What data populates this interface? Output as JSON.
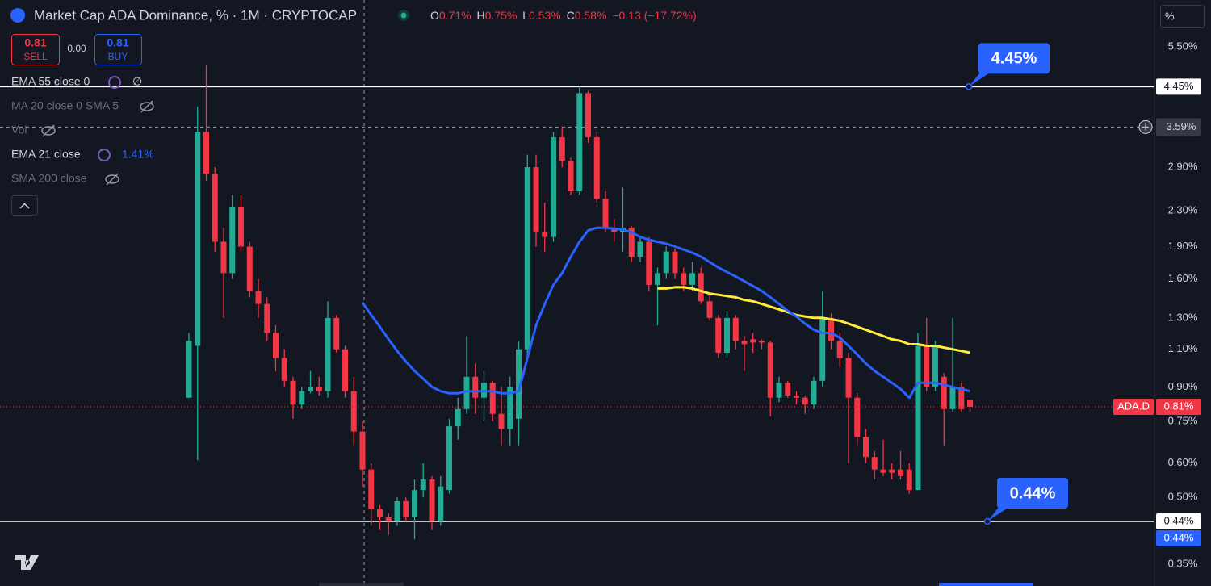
{
  "header": {
    "title": "Market Cap ADA Dominance, % · 1M · CRYPTOCAP",
    "ohlc": [
      {
        "key": "O",
        "text": "0.71%"
      },
      {
        "key": "H",
        "text": "0.75%"
      },
      {
        "key": "L",
        "text": "0.53%"
      },
      {
        "key": "C",
        "text": "0.58%"
      }
    ],
    "change": "−0.13 (−17.72%)"
  },
  "trade": {
    "sell_price": "0.81",
    "sell": "SELL",
    "spread": "0.00",
    "buy_price": "0.81",
    "buy": "BUY"
  },
  "hidden_indicators": [
    "MA 20 close 0 SMA 5",
    "Vol",
    "SMA 200 close"
  ],
  "scale_unit": "%",
  "chart_data": {
    "type": "candlestick",
    "log": true,
    "up_color": "#22ab94",
    "down_color": "#f23645",
    "open": [
      0.85,
      1.12,
      3.5,
      2.8,
      1.95,
      1.65,
      2.35,
      1.9,
      1.5,
      1.4,
      1.2,
      1.05,
      0.93,
      0.82,
      0.88,
      0.9,
      0.88,
      1.3,
      1.1,
      0.88,
      0.71,
      0.58,
      0.47,
      0.45,
      0.44,
      0.49,
      0.45,
      0.52,
      0.55,
      0.44,
      0.52,
      0.73,
      0.8,
      0.95,
      0.85,
      0.92,
      0.78,
      0.72,
      0.76,
      1.1,
      2.9,
      2.05,
      2.0,
      3.4,
      3.0,
      2.55,
      4.3,
      3.4,
      2.45,
      2.1,
      2.05,
      2.1,
      1.8,
      1.95,
      1.55,
      1.65,
      1.85,
      1.65,
      1.55,
      1.65,
      1.42,
      1.3,
      1.08,
      1.3,
      1.15,
      1.16,
      1.15,
      1.14,
      0.85,
      0.92,
      0.86,
      0.85,
      0.82,
      0.93,
      1.3,
      1.15,
      1.05,
      0.85,
      0.69,
      0.62,
      0.58,
      0.58,
      0.58,
      0.58,
      0.52,
      1.12,
      0.9,
      0.95,
      0.8,
      0.9,
      0.84
    ],
    "high": [
      1.2,
      4.0,
      5.0,
      2.9,
      2.1,
      2.5,
      2.5,
      1.95,
      1.6,
      1.45,
      1.25,
      1.1,
      0.95,
      0.9,
      0.98,
      0.95,
      1.42,
      1.32,
      1.12,
      0.95,
      0.75,
      0.6,
      0.48,
      0.46,
      0.5,
      0.5,
      0.55,
      0.6,
      0.56,
      0.56,
      0.76,
      0.85,
      1.18,
      1.02,
      0.98,
      0.93,
      0.9,
      0.95,
      1.15,
      3.1,
      3.1,
      2.4,
      3.5,
      3.6,
      3.05,
      4.45,
      4.35,
      3.5,
      2.55,
      2.2,
      2.6,
      2.12,
      2.0,
      2.0,
      1.7,
      1.9,
      1.88,
      1.7,
      1.75,
      1.7,
      1.48,
      1.32,
      1.35,
      1.32,
      1.18,
      1.2,
      1.16,
      1.15,
      0.95,
      0.93,
      0.88,
      0.86,
      0.95,
      1.5,
      1.33,
      1.2,
      1.08,
      0.87,
      0.72,
      0.64,
      0.68,
      0.6,
      0.64,
      0.6,
      1.2,
      1.3,
      1.15,
      0.97,
      1.3,
      0.92,
      0.84
    ],
    "low": [
      0.85,
      0.61,
      2.7,
      1.85,
      1.3,
      1.6,
      1.85,
      1.45,
      1.3,
      1.15,
      0.98,
      0.9,
      0.76,
      0.8,
      0.87,
      0.86,
      0.85,
      1.08,
      0.85,
      0.66,
      0.53,
      0.43,
      0.42,
      0.41,
      0.43,
      0.44,
      0.4,
      0.5,
      0.42,
      0.43,
      0.51,
      0.68,
      0.78,
      0.78,
      0.75,
      0.75,
      0.66,
      0.66,
      0.66,
      1.05,
      1.9,
      1.85,
      1.95,
      2.9,
      2.5,
      2.5,
      3.3,
      2.4,
      2.05,
      1.95,
      1.85,
      1.75,
      1.75,
      1.5,
      1.25,
      1.6,
      1.6,
      1.5,
      1.5,
      1.4,
      1.28,
      1.05,
      1.05,
      1.1,
      0.98,
      1.08,
      1.1,
      0.77,
      0.83,
      0.85,
      0.82,
      0.78,
      0.8,
      0.9,
      1.1,
      1.0,
      0.6,
      0.66,
      0.6,
      0.55,
      0.56,
      0.55,
      0.55,
      0.51,
      0.52,
      0.88,
      0.88,
      0.66,
      0.79,
      0.79,
      0.79
    ],
    "close": [
      1.15,
      3.5,
      2.8,
      1.95,
      1.65,
      2.35,
      1.9,
      1.5,
      1.4,
      1.2,
      1.05,
      0.93,
      0.82,
      0.88,
      0.9,
      0.88,
      1.3,
      1.1,
      0.88,
      0.71,
      0.58,
      0.47,
      0.45,
      0.44,
      0.49,
      0.45,
      0.52,
      0.55,
      0.44,
      0.53,
      0.73,
      0.8,
      0.95,
      0.85,
      0.92,
      0.78,
      0.72,
      0.9,
      1.1,
      2.9,
      2.05,
      2.0,
      3.4,
      3.0,
      2.55,
      4.3,
      3.4,
      2.45,
      2.1,
      2.05,
      2.1,
      1.8,
      1.95,
      1.55,
      1.65,
      1.85,
      1.65,
      1.55,
      1.65,
      1.42,
      1.3,
      1.08,
      1.3,
      1.15,
      1.13,
      1.14,
      1.14,
      0.85,
      0.92,
      0.86,
      0.85,
      0.82,
      0.93,
      1.3,
      1.15,
      1.05,
      0.85,
      0.69,
      0.62,
      0.58,
      0.57,
      0.57,
      0.56,
      0.52,
      1.12,
      0.9,
      1.12,
      0.8,
      0.9,
      0.8,
      0.81
    ],
    "series": [
      {
        "name": "EMA 55 close 0",
        "legend_value": "∅",
        "color": "#ffeb3b",
        "values": [
          null,
          null,
          null,
          null,
          null,
          null,
          null,
          null,
          null,
          null,
          null,
          null,
          null,
          null,
          null,
          null,
          null,
          null,
          null,
          null,
          null,
          null,
          null,
          null,
          null,
          null,
          null,
          null,
          null,
          null,
          null,
          null,
          null,
          null,
          null,
          null,
          null,
          null,
          null,
          null,
          null,
          null,
          null,
          null,
          null,
          null,
          null,
          null,
          null,
          null,
          null,
          null,
          null,
          null,
          1.52,
          1.52,
          1.53,
          1.53,
          1.52,
          1.5,
          1.48,
          1.47,
          1.46,
          1.45,
          1.43,
          1.42,
          1.4,
          1.38,
          1.36,
          1.34,
          1.32,
          1.31,
          1.3,
          1.3,
          1.29,
          1.28,
          1.26,
          1.24,
          1.22,
          1.2,
          1.18,
          1.16,
          1.15,
          1.13,
          1.13,
          1.12,
          1.12,
          1.11,
          1.1,
          1.09,
          1.08
        ]
      },
      {
        "name": "EMA 21 close",
        "legend_value": "1.41%",
        "color": "#2962ff",
        "values": [
          null,
          null,
          null,
          null,
          null,
          null,
          null,
          null,
          null,
          null,
          null,
          null,
          null,
          null,
          null,
          null,
          null,
          null,
          null,
          null,
          1.41,
          1.32,
          1.24,
          1.16,
          1.09,
          1.03,
          0.98,
          0.94,
          0.9,
          0.88,
          0.87,
          0.87,
          0.88,
          0.88,
          0.88,
          0.88,
          0.87,
          0.87,
          0.88,
          1.05,
          1.25,
          1.4,
          1.55,
          1.65,
          1.8,
          1.95,
          2.07,
          2.1,
          2.1,
          2.09,
          2.08,
          2.05,
          2.0,
          1.97,
          1.95,
          1.93,
          1.9,
          1.87,
          1.84,
          1.8,
          1.75,
          1.7,
          1.66,
          1.62,
          1.58,
          1.54,
          1.5,
          1.45,
          1.4,
          1.35,
          1.31,
          1.26,
          1.22,
          1.2,
          1.2,
          1.17,
          1.12,
          1.07,
          1.02,
          0.98,
          0.95,
          0.92,
          0.89,
          0.85,
          0.92,
          0.92,
          0.92,
          0.91,
          0.9,
          0.89,
          0.88
        ]
      }
    ],
    "ylim": [
      0.312,
      7.06
    ],
    "yticks": [
      {
        "value": 5.5,
        "label": "5.50%"
      },
      {
        "value": 2.9,
        "label": "2.90%"
      },
      {
        "value": 2.3,
        "label": "2.30%"
      },
      {
        "value": 1.9,
        "label": "1.90%"
      },
      {
        "value": 1.6,
        "label": "1.60%"
      },
      {
        "value": 1.3,
        "label": "1.30%"
      },
      {
        "value": 1.1,
        "label": "1.10%"
      },
      {
        "value": 0.9,
        "label": "0.90%"
      },
      {
        "value": 0.75,
        "label": "0.75%"
      },
      {
        "value": 0.6,
        "label": "0.60%"
      },
      {
        "value": 0.5,
        "label": "0.50%"
      },
      {
        "value": 0.35,
        "label": "0.35%"
      }
    ],
    "hlines": [
      {
        "value": 4.45,
        "label": "4.45%",
        "callout": "4.45%"
      },
      {
        "value": 0.44,
        "label": "0.44%",
        "callout": "0.44%",
        "extra_label": "0.44%"
      }
    ],
    "crosshair": {
      "value": 3.59,
      "label": "3.59%"
    },
    "last_price": {
      "value": 0.81,
      "symbol": "ADA.D",
      "label": "0.81%"
    }
  }
}
